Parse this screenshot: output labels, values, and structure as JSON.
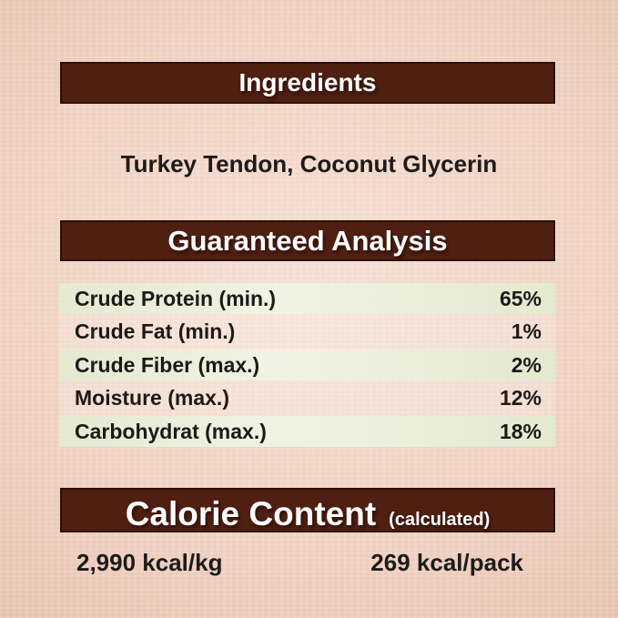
{
  "colors": {
    "background_peach": "#f2d5c6",
    "header_bar_brown": "#4f1f12",
    "header_bar_border": "#2e0f07",
    "header_text_white": "#ffffff",
    "row_stripe_green": "#e9ecd6",
    "body_text_dark": "#1d1b1a"
  },
  "ingredients": {
    "title": "Ingredients",
    "value": "Turkey Tendon, Coconut Glycerin"
  },
  "guaranteed_analysis": {
    "title": "Guaranteed Analysis",
    "rows": [
      {
        "label": "Crude Protein (min.)",
        "value": "65%"
      },
      {
        "label": "Crude Fat (min.)",
        "value": "1%"
      },
      {
        "label": "Crude Fiber (max.)",
        "value": "2%"
      },
      {
        "label": "Moisture (max.)",
        "value": "12%"
      },
      {
        "label": "Carbohydrat (max.)",
        "value": "18%"
      }
    ]
  },
  "calorie_content": {
    "title": "Calorie Content",
    "subtitle": "(calculated)",
    "per_kg": "2,990 kcal/kg",
    "per_pack": "269 kcal/pack"
  }
}
